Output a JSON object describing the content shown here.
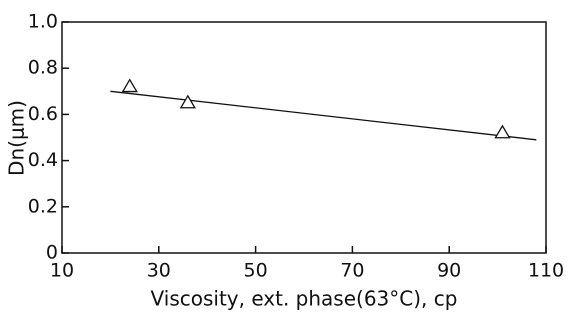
{
  "chart_data": {
    "type": "scatter",
    "xlabel": "Viscosity, ext. phase(63°C), cp",
    "ylabel": "Dn(μm)",
    "x": [
      24,
      36,
      101
    ],
    "values": [
      0.72,
      0.65,
      0.52
    ],
    "marker": "triangle",
    "color": "#111111",
    "fit_line": {
      "x": [
        20,
        108
      ],
      "y": [
        0.7,
        0.49
      ]
    },
    "xlim": [
      10,
      110
    ],
    "xticks": [
      10,
      30,
      50,
      70,
      90,
      110
    ],
    "ylim": [
      0,
      1
    ],
    "yticks": [
      0,
      0.2,
      0.4,
      0.6,
      0.8,
      {
        "value": 1,
        "label": "1.0"
      }
    ],
    "grid": false
  }
}
